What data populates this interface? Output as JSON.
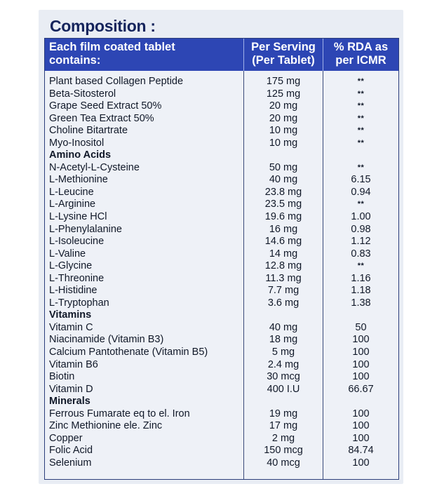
{
  "title": "Composition :",
  "header": {
    "col1_line1": "Each film coated tablet",
    "col1_line2": "contains:",
    "col2_line1": "Per Serving",
    "col2_line2": "(Per Tablet)",
    "col3_line1": "% RDA as",
    "col3_line2": "per ICMR"
  },
  "rows": [
    {
      "name": "Plant based Collagen Peptide",
      "amount": "175 mg",
      "rda": "**"
    },
    {
      "name": "Beta-Sitosterol",
      "amount": "125 mg",
      "rda": "**"
    },
    {
      "name": "Grape Seed Extract 50%",
      "amount": "20 mg",
      "rda": "**"
    },
    {
      "name": "Green Tea Extract 50%",
      "amount": "20 mg",
      "rda": "**"
    },
    {
      "name": "Choline Bitartrate",
      "amount": "10 mg",
      "rda": "**"
    },
    {
      "name": "Myo-Inositol",
      "amount": "10 mg",
      "rda": "**"
    },
    {
      "name": "Amino Acids",
      "amount": "",
      "rda": ""
    },
    {
      "name": "N-Acetyl-L-Cysteine",
      "amount": "50 mg",
      "rda": "**"
    },
    {
      "name": "L-Methionine",
      "amount": "40 mg",
      "rda": "6.15"
    },
    {
      "name": "L-Leucine",
      "amount": "23.8 mg",
      "rda": "0.94"
    },
    {
      "name": "L-Arginine",
      "amount": "23.5 mg",
      "rda": "**"
    },
    {
      "name": "L-Lysine HCl",
      "amount": "19.6 mg",
      "rda": "1.00"
    },
    {
      "name": "L-Phenylalanine",
      "amount": "16 mg",
      "rda": "0.98"
    },
    {
      "name": "L-Isoleucine",
      "amount": "14.6 mg",
      "rda": "1.12"
    },
    {
      "name": "L-Valine",
      "amount": "14 mg",
      "rda": "0.83"
    },
    {
      "name": "L-Glycine",
      "amount": "12.8 mg",
      "rda": "**"
    },
    {
      "name": "L-Threonine",
      "amount": "11.3 mg",
      "rda": "1.16"
    },
    {
      "name": "L-Histidine",
      "amount": "7.7 mg",
      "rda": "1.18"
    },
    {
      "name": "L-Tryptophan",
      "amount": "3.6 mg",
      "rda": "1.38"
    },
    {
      "name": "Vitamins",
      "amount": "",
      "rda": ""
    },
    {
      "name": "Vitamin C",
      "amount": "40 mg",
      "rda": "50"
    },
    {
      "name": "Niacinamide (Vitamin B3)",
      "amount": "18 mg",
      "rda": "100"
    },
    {
      "name": "Calcium Pantothenate (Vitamin B5)",
      "amount": "5 mg",
      "rda": "100"
    },
    {
      "name": "Vitamin B6",
      "amount": "2.4 mg",
      "rda": "100"
    },
    {
      "name": "Biotin",
      "amount": "30 mcg",
      "rda": "100"
    },
    {
      "name": "Vitamin D",
      "amount": "400 I.U",
      "rda": "66.67"
    },
    {
      "name": "Minerals",
      "amount": "",
      "rda": ""
    },
    {
      "name": "Ferrous Fumarate eq to el. Iron",
      "amount": "19 mg",
      "rda": "100"
    },
    {
      "name": "Zinc Methionine ele. Zinc",
      "amount": "17 mg",
      "rda": "100"
    },
    {
      "name": "Copper",
      "amount": "2 mg",
      "rda": "100"
    },
    {
      "name": "Folic Acid",
      "amount": "150 mcg",
      "rda": "84.74"
    },
    {
      "name": "Selenium",
      "amount": "40 mcg",
      "rda": "100"
    }
  ],
  "colors": {
    "header_bg": "#2d46b4",
    "title_text": "#15245c",
    "panel_bg": "#e9edf4"
  }
}
